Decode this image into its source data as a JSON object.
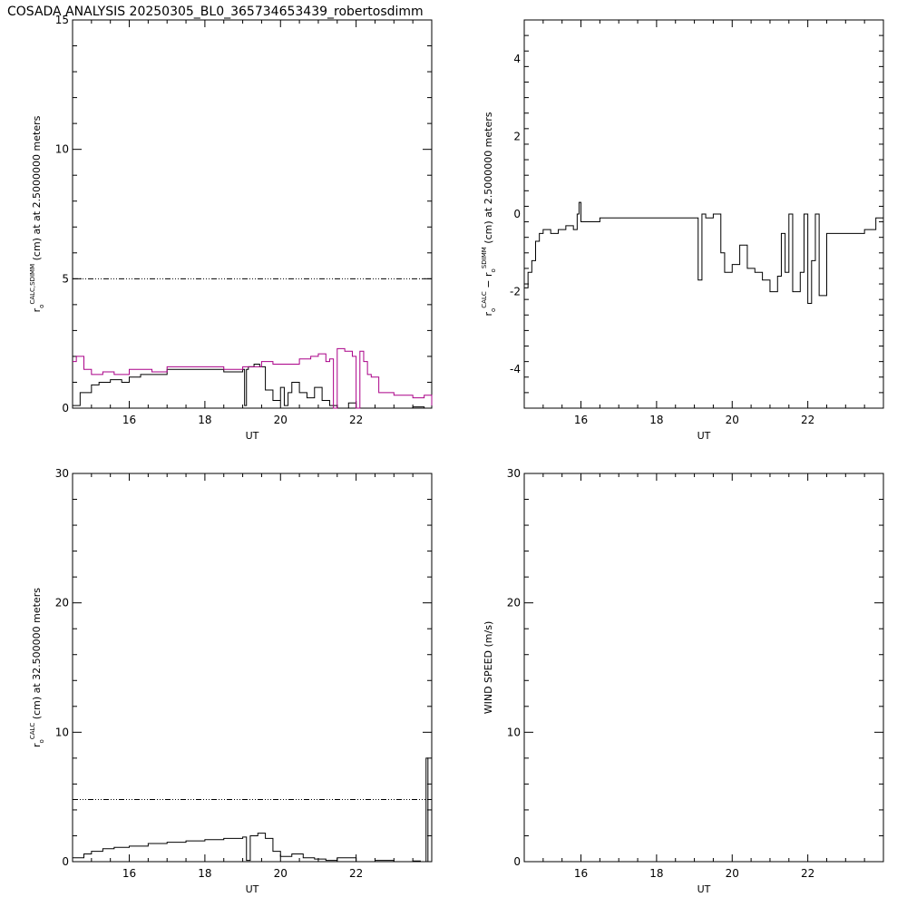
{
  "title": "COSADA ANALYSIS 20250305_BL0_365734653439_robertosdimm",
  "chart_data": [
    {
      "id": "p1",
      "type": "line",
      "xlim": [
        14.5,
        24
      ],
      "ylim": [
        0,
        15
      ],
      "xticks": [
        16,
        18,
        20,
        22
      ],
      "yticks": [
        0,
        5,
        10,
        15
      ],
      "xlabel": "UT",
      "ylabel": {
        "r": "r",
        "o": "o",
        "sup": "CALC,SDIMM",
        "rest": " (cm)  at  at 2.5000000 meters"
      },
      "reference_line": {
        "y": 5.0,
        "style": "dash-dot-dot"
      },
      "series": [
        {
          "color": "#000000",
          "x": [
            14.5,
            14.7,
            15.0,
            15.2,
            15.5,
            15.8,
            16.0,
            16.3,
            16.6,
            17.0,
            17.5,
            18.0,
            18.5,
            19.0,
            19.05,
            19.1,
            19.15,
            19.3,
            19.45,
            19.6,
            19.8,
            20.0,
            20.1,
            20.2,
            20.3,
            20.5,
            20.7,
            20.9,
            21.1,
            21.3,
            21.5,
            21.8,
            22.0,
            22.5,
            23.0,
            23.5,
            23.8,
            24.0
          ],
          "values": [
            0.1,
            0.6,
            0.9,
            1.0,
            1.1,
            1.0,
            1.2,
            1.3,
            1.3,
            1.5,
            1.5,
            1.5,
            1.4,
            1.5,
            0.1,
            1.5,
            1.6,
            1.7,
            1.6,
            0.7,
            0.3,
            0.8,
            0.1,
            0.6,
            1.0,
            0.6,
            0.4,
            0.8,
            0.3,
            0.1,
            0.0,
            0.2,
            0.0,
            0.0,
            0.0,
            0.05,
            0.0,
            0.1
          ]
        },
        {
          "color": "#aa0088",
          "x": [
            14.5,
            14.6,
            14.8,
            15.0,
            15.3,
            15.6,
            16.0,
            16.3,
            16.6,
            17.0,
            17.5,
            18.0,
            18.5,
            19.0,
            19.3,
            19.5,
            19.8,
            20.2,
            20.5,
            20.8,
            21.0,
            21.2,
            21.3,
            21.4,
            21.5,
            21.7,
            21.9,
            22.0,
            22.1,
            22.2,
            22.3,
            22.4,
            22.6,
            23.0,
            23.5,
            23.8,
            24.0
          ],
          "values": [
            1.8,
            2.0,
            1.5,
            1.3,
            1.4,
            1.3,
            1.5,
            1.5,
            1.4,
            1.6,
            1.6,
            1.6,
            1.5,
            1.6,
            1.6,
            1.8,
            1.7,
            1.7,
            1.9,
            2.0,
            2.1,
            1.8,
            1.9,
            0.0,
            2.3,
            2.2,
            2.0,
            0.0,
            2.2,
            1.8,
            1.3,
            1.2,
            0.6,
            0.5,
            0.4,
            0.5,
            0.1
          ]
        }
      ]
    },
    {
      "id": "p2",
      "type": "line",
      "xlim": [
        14.5,
        24
      ],
      "ylim": [
        -5,
        5
      ],
      "xticks": [
        16,
        18,
        20,
        22
      ],
      "yticks": [
        -4,
        -2,
        0,
        2,
        4
      ],
      "xlabel": "UT",
      "ylabel": {
        "r": "r",
        "o": "o",
        "sup": "CALC",
        "minus": " − ",
        "r2": "r",
        "o2": "o",
        "sup2": "SDIMM",
        "rest": " (cm)  at  2.5000000 meters"
      },
      "series": [
        {
          "color": "#000000",
          "x": [
            14.5,
            14.6,
            14.7,
            14.8,
            14.9,
            15.0,
            15.2,
            15.4,
            15.6,
            15.8,
            15.9,
            15.95,
            16.0,
            16.2,
            16.5,
            17.0,
            17.5,
            18.0,
            18.5,
            19.0,
            19.1,
            19.2,
            19.3,
            19.5,
            19.7,
            19.8,
            20.0,
            20.2,
            20.4,
            20.6,
            20.8,
            21.0,
            21.2,
            21.3,
            21.4,
            21.5,
            21.6,
            21.8,
            21.9,
            22.0,
            22.1,
            22.2,
            22.3,
            22.5,
            23.0,
            23.5,
            23.8,
            24.0
          ],
          "values": [
            -1.9,
            -1.5,
            -1.2,
            -0.7,
            -0.5,
            -0.4,
            -0.5,
            -0.4,
            -0.3,
            -0.4,
            0.0,
            0.3,
            -0.2,
            -0.2,
            -0.1,
            -0.1,
            -0.1,
            -0.1,
            -0.1,
            -0.1,
            -1.7,
            0.0,
            -0.1,
            0.0,
            -1.0,
            -1.5,
            -1.3,
            -0.8,
            -1.4,
            -1.5,
            -1.7,
            -2.0,
            -1.6,
            -0.5,
            -1.5,
            0.0,
            -2.0,
            -1.5,
            0.0,
            -2.3,
            -1.2,
            0.0,
            -2.1,
            -0.5,
            -0.5,
            -0.4,
            -0.1,
            0.0
          ]
        }
      ]
    },
    {
      "id": "p3",
      "type": "line",
      "xlim": [
        14.5,
        24
      ],
      "ylim": [
        0,
        30
      ],
      "xticks": [
        16,
        18,
        20,
        22
      ],
      "yticks": [
        0,
        10,
        20,
        30
      ],
      "xlabel": "UT",
      "ylabel": {
        "r": "r",
        "o": "o",
        "sup": "CALC",
        "rest": " (cm)  at  32.500000 meters"
      },
      "reference_line": {
        "y": 4.8,
        "style": "dash-dot-dot"
      },
      "series": [
        {
          "color": "#000000",
          "x": [
            14.5,
            14.8,
            15.0,
            15.3,
            15.6,
            16.0,
            16.5,
            17.0,
            17.5,
            18.0,
            18.5,
            19.0,
            19.1,
            19.2,
            19.4,
            19.6,
            19.8,
            20.0,
            20.3,
            20.6,
            20.9,
            21.2,
            21.5,
            22.0,
            22.5,
            23.0,
            23.5,
            23.7,
            23.85,
            23.9
          ],
          "values": [
            0.3,
            0.6,
            0.8,
            1.0,
            1.1,
            1.2,
            1.4,
            1.5,
            1.6,
            1.7,
            1.8,
            1.9,
            0.1,
            2.0,
            2.2,
            1.8,
            0.8,
            0.4,
            0.6,
            0.3,
            0.2,
            0.1,
            0.3,
            0.0,
            0.1,
            0.0,
            0.05,
            0.0,
            8.0,
            0.0
          ]
        }
      ]
    },
    {
      "id": "p4",
      "type": "line",
      "xlim": [
        14.5,
        24
      ],
      "ylim": [
        0,
        30
      ],
      "xticks": [
        16,
        18,
        20,
        22
      ],
      "yticks": [
        0,
        10,
        20,
        30
      ],
      "xlabel": "UT",
      "ylabel": {
        "r": "WIND SPEED (m/s)",
        "o": "",
        "sup": "",
        "rest": ""
      },
      "series": []
    }
  ]
}
